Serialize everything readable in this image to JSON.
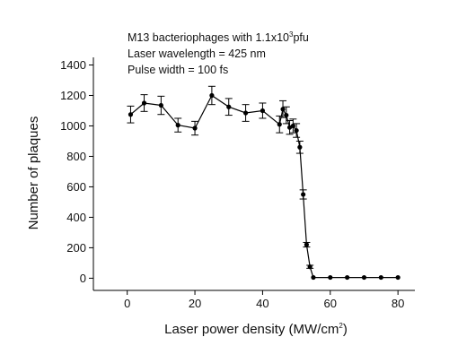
{
  "chart_data": {
    "type": "line",
    "title": "",
    "annotations": {
      "line1_prefix": "M13 bacteriophages with 1.1x10",
      "line1_sup": "3",
      "line1_suffix": "pfu",
      "line2": "Laser wavelength = 425 nm",
      "line3": "Pulse width = 100 fs"
    },
    "xlabel_main": "Laser power density (MW/cm",
    "xlabel_sup": "2",
    "xlabel_end": ")",
    "ylabel": "Number of plaques",
    "xlim": [
      -10,
      85
    ],
    "ylim": [
      -80,
      1450
    ],
    "xticks": [
      0,
      20,
      40,
      60,
      80
    ],
    "yticks": [
      0,
      200,
      400,
      600,
      800,
      1000,
      1200,
      1400
    ],
    "grid": false,
    "marker_color": "#000000",
    "series": [
      {
        "x": [
          1,
          5,
          10,
          15,
          20,
          25,
          30,
          35,
          40,
          45,
          46,
          47,
          48,
          49,
          50,
          51,
          52,
          53,
          54,
          55,
          60,
          65,
          70,
          75,
          80
        ],
        "y": [
          1075,
          1150,
          1135,
          1005,
          985,
          1200,
          1125,
          1085,
          1100,
          1010,
          1110,
          1070,
          990,
          1000,
          970,
          860,
          550,
          220,
          75,
          5,
          5,
          5,
          5,
          5,
          5
        ],
        "err": [
          55,
          55,
          60,
          45,
          45,
          60,
          55,
          55,
          50,
          55,
          55,
          55,
          45,
          45,
          45,
          40,
          30,
          15,
          10,
          0,
          0,
          0,
          0,
          0,
          0
        ]
      }
    ]
  }
}
